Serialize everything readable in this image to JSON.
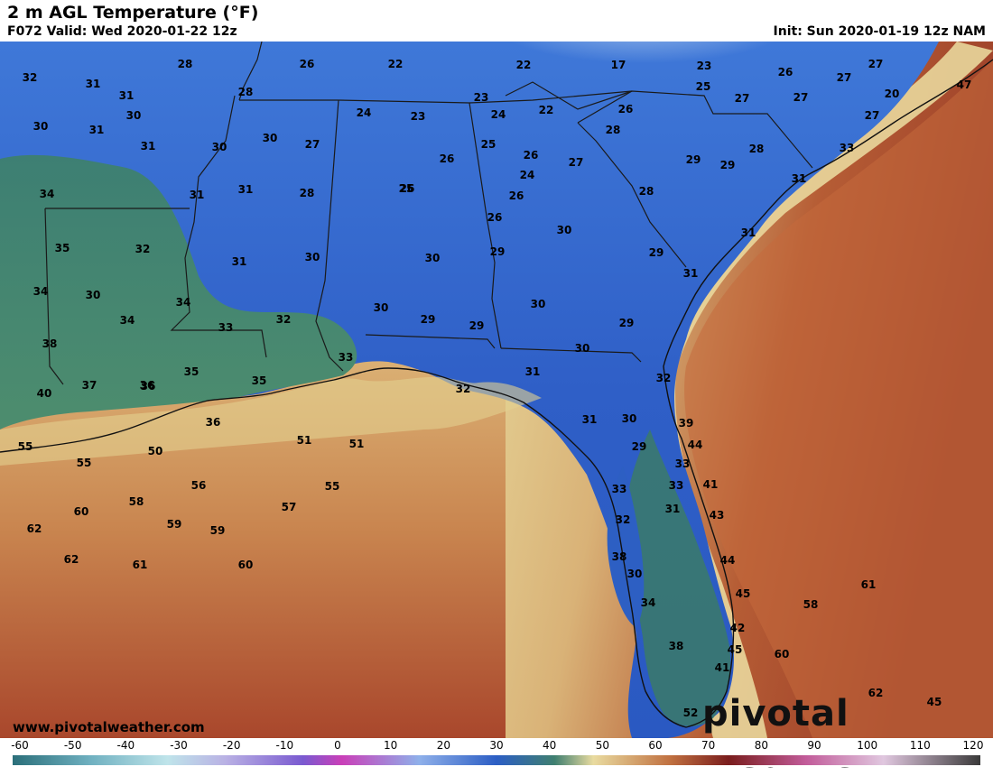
{
  "header": {
    "title": "2 m AGL Temperature (°F)",
    "valid": "F072 Valid: Wed 2020-01-22 12z",
    "init": "Init: Sun 2020-01-19 12z NAM"
  },
  "footer": {
    "url": "www.pivotalweather.com",
    "brand": "pivotal weather"
  },
  "colorbar": {
    "ticks": [
      "-60",
      "-50",
      "-40",
      "-30",
      "-20",
      "-10",
      "0",
      "10",
      "20",
      "30",
      "40",
      "50",
      "60",
      "70",
      "80",
      "90",
      "100",
      "110",
      "120"
    ]
  },
  "colors": {
    "cold_land": "#2f62c9",
    "green_land": "#3d7a6a",
    "warm_gulf": "#e8d9a0",
    "hot_ocean": "#a8482c"
  },
  "station_values": [
    {
      "t": "32"
    },
    {
      "t": "28"
    },
    {
      "t": "26"
    },
    {
      "t": "22"
    },
    {
      "t": "22"
    },
    {
      "t": "17"
    },
    {
      "t": "23"
    },
    {
      "t": "26"
    },
    {
      "t": "27"
    },
    {
      "t": "27"
    },
    {
      "t": "31"
    },
    {
      "t": "31"
    },
    {
      "t": "30"
    },
    {
      "t": "28"
    },
    {
      "t": "25"
    },
    {
      "t": "27"
    },
    {
      "t": "27"
    },
    {
      "t": "20"
    },
    {
      "t": "47"
    },
    {
      "t": "30"
    },
    {
      "t": "31"
    },
    {
      "t": "24"
    },
    {
      "t": "23"
    },
    {
      "t": "23"
    },
    {
      "t": "24"
    },
    {
      "t": "22"
    },
    {
      "t": "26"
    },
    {
      "t": "27"
    },
    {
      "t": "31"
    },
    {
      "t": "30"
    },
    {
      "t": "30"
    },
    {
      "t": "27"
    },
    {
      "t": "25"
    },
    {
      "t": "26"
    },
    {
      "t": "28"
    },
    {
      "t": "26"
    },
    {
      "t": "25"
    },
    {
      "t": "27"
    },
    {
      "t": "28"
    },
    {
      "t": "29"
    },
    {
      "t": "34"
    },
    {
      "t": "31"
    },
    {
      "t": "31"
    },
    {
      "t": "28"
    },
    {
      "t": "26"
    },
    {
      "t": "24"
    },
    {
      "t": "26"
    },
    {
      "t": "28"
    },
    {
      "t": "31"
    },
    {
      "t": "33"
    },
    {
      "t": "29"
    },
    {
      "t": "26"
    },
    {
      "t": "30"
    },
    {
      "t": "35"
    },
    {
      "t": "32"
    },
    {
      "t": "31"
    },
    {
      "t": "30"
    },
    {
      "t": "30"
    },
    {
      "t": "29"
    },
    {
      "t": "29"
    },
    {
      "t": "31"
    },
    {
      "t": "34"
    },
    {
      "t": "30"
    },
    {
      "t": "31"
    },
    {
      "t": "34"
    },
    {
      "t": "34"
    },
    {
      "t": "30"
    },
    {
      "t": "29"
    },
    {
      "t": "29"
    },
    {
      "t": "30"
    },
    {
      "t": "29"
    },
    {
      "t": "33"
    },
    {
      "t": "32"
    },
    {
      "t": "38"
    },
    {
      "t": "33"
    },
    {
      "t": "30"
    },
    {
      "t": "32"
    },
    {
      "t": "35"
    },
    {
      "t": "36"
    },
    {
      "t": "35"
    },
    {
      "t": "31"
    },
    {
      "t": "37"
    },
    {
      "t": "36"
    },
    {
      "t": "40"
    },
    {
      "t": "32"
    },
    {
      "t": "31"
    },
    {
      "t": "30"
    },
    {
      "t": "39"
    },
    {
      "t": "36"
    },
    {
      "t": "29"
    },
    {
      "t": "44"
    },
    {
      "t": "55"
    },
    {
      "t": "50"
    },
    {
      "t": "51"
    },
    {
      "t": "51"
    },
    {
      "t": "33"
    },
    {
      "t": "33"
    },
    {
      "t": "41"
    },
    {
      "t": "55"
    },
    {
      "t": "56"
    },
    {
      "t": "55"
    },
    {
      "t": "58"
    },
    {
      "t": "33"
    },
    {
      "t": "31"
    },
    {
      "t": "43"
    },
    {
      "t": "60"
    },
    {
      "t": "57"
    },
    {
      "t": "32"
    },
    {
      "t": "62"
    },
    {
      "t": "59"
    },
    {
      "t": "59"
    },
    {
      "t": "38"
    },
    {
      "t": "44"
    },
    {
      "t": "62"
    },
    {
      "t": "61"
    },
    {
      "t": "60"
    },
    {
      "t": "30"
    },
    {
      "t": "61"
    },
    {
      "t": "45"
    },
    {
      "t": "34"
    },
    {
      "t": "58"
    },
    {
      "t": "42"
    },
    {
      "t": "38"
    },
    {
      "t": "45"
    },
    {
      "t": "60"
    },
    {
      "t": "41"
    },
    {
      "t": "62"
    },
    {
      "t": "52"
    },
    {
      "t": "45"
    }
  ]
}
